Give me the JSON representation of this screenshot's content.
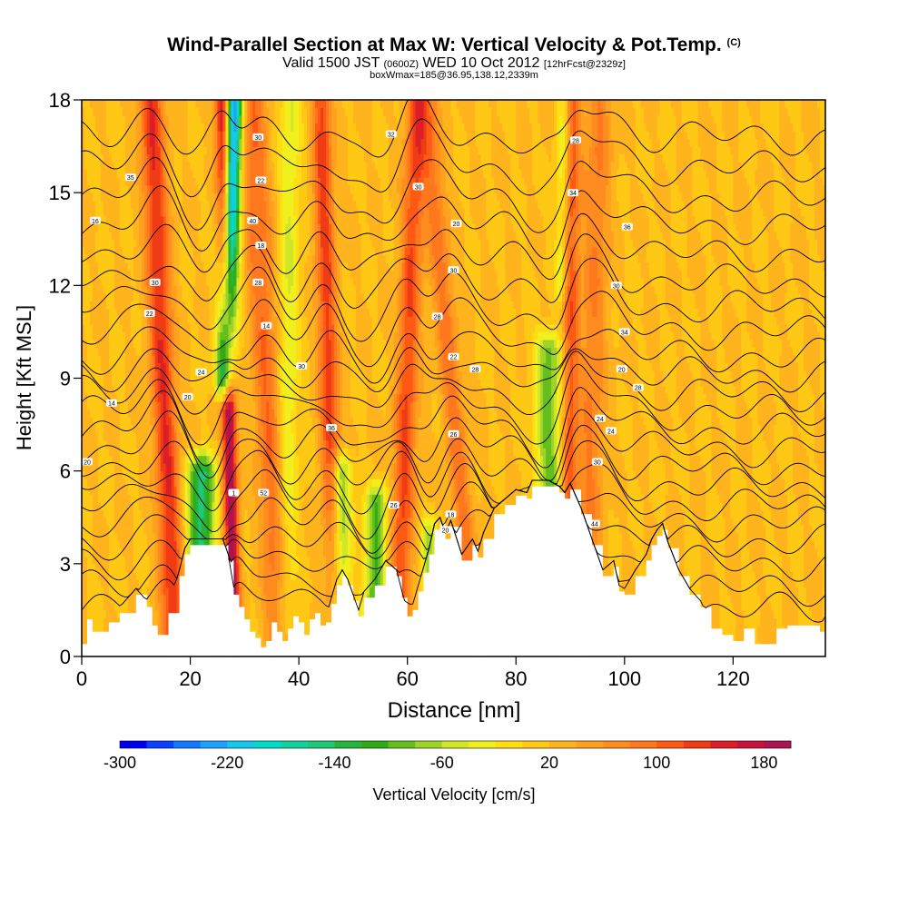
{
  "header": {
    "title": "Wind-Parallel Section at Max W: Vertical Velocity & Pot.Temp.",
    "copyright": "(C)",
    "valid_prefix": "Valid 1500 JST",
    "valid_utc": "(0600Z)",
    "valid_date": "WED 10 Oct 2012",
    "forecast": "[12hrFcst@2329z]",
    "box_info": "boxWmax=185@36.95,138.12,2339m"
  },
  "chart_data": {
    "type": "heatmap",
    "xlabel": "Distance [nm]",
    "ylabel": "Height [Kft MSL]",
    "xlim": [
      0,
      137
    ],
    "ylim": [
      0,
      18
    ],
    "xticks": [
      0,
      20,
      40,
      60,
      80,
      100,
      120
    ],
    "yticks": [
      0,
      3,
      6,
      9,
      12,
      15,
      18
    ],
    "grid": false,
    "colorbar": {
      "label": "Vertical Velocity [cm/s]",
      "min": -300,
      "max": 200,
      "step": 20,
      "tick_values": [
        -300,
        -220,
        -140,
        -60,
        20,
        100,
        180
      ],
      "tick_labels": [
        "-300",
        "-220",
        "-140",
        "-60",
        "20",
        "100",
        "180"
      ],
      "colors": [
        "#0000f0",
        "#0a40ff",
        "#1478ff",
        "#1ea0ff",
        "#14c8f0",
        "#00dcc8",
        "#14d2a0",
        "#1ec878",
        "#28b43c",
        "#32aa14",
        "#64be1e",
        "#a0d228",
        "#d2e628",
        "#f0f01e",
        "#ffdc14",
        "#ffc814",
        "#ffb41e",
        "#ffa01e",
        "#ff8c1e",
        "#ff781e",
        "#ff5a14",
        "#f03c14",
        "#dc1e28",
        "#c8143c",
        "#aa1450",
        "#821e78"
      ]
    },
    "background_velocity": 20,
    "updraft_bands": [
      {
        "x": 15,
        "tilt": -0.25,
        "width": 2.2,
        "value": 120
      },
      {
        "x": 27,
        "tilt": -0.12,
        "width": 1.3,
        "value": 180
      },
      {
        "x": 34,
        "tilt": -0.3,
        "width": 2.5,
        "value": 80
      },
      {
        "x": 45.5,
        "tilt": -0.15,
        "width": 1.8,
        "value": 110
      },
      {
        "x": 60,
        "tilt": 0.2,
        "width": 2.0,
        "value": 100
      },
      {
        "x": 68,
        "tilt": -0.5,
        "width": 2.0,
        "value": 70
      },
      {
        "x": 90,
        "tilt": 0.05,
        "width": 1.5,
        "value": 90
      },
      {
        "x": 94,
        "tilt": 0.15,
        "width": 2.5,
        "value": 60
      }
    ],
    "downdraft_bands": [
      {
        "x": 22,
        "tilt": 0,
        "width": 2.5,
        "value": -170,
        "ymax": 6
      },
      {
        "x": 26.5,
        "tilt": 0.18,
        "width": 1.6,
        "value": -280,
        "ymin": 9
      },
      {
        "x": 38,
        "tilt": 0.05,
        "width": 2.0,
        "value": -60
      },
      {
        "x": 48,
        "tilt": 0.1,
        "width": 2.0,
        "value": -120,
        "ymax": 6
      },
      {
        "x": 55,
        "tilt": 0.15,
        "width": 2.0,
        "value": -120,
        "ymax": 5
      },
      {
        "x": 64,
        "tilt": 0,
        "width": 1.5,
        "value": -80,
        "ymax": 4
      },
      {
        "x": 86,
        "tilt": 0,
        "width": 2.5,
        "value": -110,
        "ymin": 5.5,
        "ymax": 10
      },
      {
        "x": 88,
        "tilt": 0.1,
        "width": 1.2,
        "value": -60,
        "ymin": 12
      }
    ],
    "terrain": {
      "x": [
        0,
        1,
        2,
        5,
        7,
        10,
        12,
        13,
        14,
        15,
        16,
        18,
        19,
        20,
        22,
        24,
        26,
        27,
        28,
        29,
        30,
        31,
        32,
        33,
        34,
        35,
        36,
        37,
        38,
        39,
        40,
        41,
        42,
        43,
        44,
        45,
        46,
        47,
        48,
        49,
        50,
        51,
        52,
        54,
        56,
        58,
        59,
        60,
        61,
        62,
        63,
        64,
        65,
        66,
        67,
        68,
        70,
        72,
        73,
        74,
        76,
        78,
        80,
        82,
        83,
        84,
        86,
        88,
        89,
        90,
        92,
        94,
        96,
        98,
        99,
        100,
        102,
        104,
        105,
        106,
        107,
        108,
        110,
        112,
        114,
        116,
        118,
        120,
        122,
        124,
        126,
        128,
        130,
        132,
        134,
        136,
        137
      ],
      "y": [
        0.4,
        1.2,
        0.8,
        1.1,
        1.4,
        2,
        1.6,
        1,
        0.7,
        0.7,
        1.4,
        2.6,
        3.3,
        3.6,
        3.6,
        3.6,
        3.6,
        3.1,
        2,
        1.6,
        1.2,
        0.8,
        0.6,
        0.3,
        0.5,
        1.1,
        0.8,
        0.5,
        0.9,
        1.3,
        1.1,
        0.7,
        1.2,
        1.4,
        1,
        1.1,
        1.7,
        2.3,
        2.6,
        2.3,
        1.8,
        1.3,
        1.9,
        2.3,
        2.9,
        2.6,
        1.9,
        1.3,
        1.5,
        2.1,
        2.7,
        3.3,
        4.1,
        4.3,
        3.8,
        4.2,
        3.1,
        3.6,
        3.2,
        3.8,
        4.6,
        4.9,
        5.2,
        5.1,
        5.5,
        5.5,
        5.5,
        5.3,
        5.1,
        5.4,
        4.6,
        3.6,
        2.6,
        2.9,
        2.1,
        2,
        2.6,
        3.1,
        3.6,
        3.9,
        4.1,
        3.5,
        2.6,
        2,
        1.6,
        0.9,
        0.7,
        0.5,
        0.9,
        0.4,
        0.4,
        0.9,
        1,
        1,
        1,
        0.8,
        1.1
      ],
      "fill": "#ffffff"
    },
    "theta_contours": {
      "levels": [
        300,
        302,
        304,
        306,
        308,
        310,
        312,
        314,
        316,
        318,
        320,
        322,
        324,
        326,
        328,
        330,
        332,
        334,
        336,
        338,
        340,
        342
      ],
      "base_heights": [
        1.5,
        2.2,
        3.0,
        3.7,
        4.3,
        4.9,
        5.5,
        6.1,
        6.7,
        7.3,
        7.9,
        8.5,
        9.1,
        9.7,
        10.5,
        11.3,
        12.1,
        13.0,
        13.9,
        14.8,
        15.8,
        16.8
      ],
      "color": "#000000"
    },
    "contour_labels": [
      {
        "x": 1,
        "y": 6.3,
        "text": "20"
      },
      {
        "x": 5.5,
        "y": 8.2,
        "text": "14"
      },
      {
        "x": 12.5,
        "y": 11.1,
        "text": "22"
      },
      {
        "x": 13.5,
        "y": 12.1,
        "text": "30"
      },
      {
        "x": 2.5,
        "y": 14.1,
        "text": "16"
      },
      {
        "x": 9,
        "y": 15.5,
        "text": "35"
      },
      {
        "x": 19.5,
        "y": 8.4,
        "text": "20"
      },
      {
        "x": 22,
        "y": 9.2,
        "text": "24"
      },
      {
        "x": 28,
        "y": 5.3,
        "text": "1"
      },
      {
        "x": 33.5,
        "y": 5.3,
        "text": "52"
      },
      {
        "x": 34,
        "y": 10.7,
        "text": "14"
      },
      {
        "x": 32.5,
        "y": 12.1,
        "text": "28"
      },
      {
        "x": 33,
        "y": 13.3,
        "text": "18"
      },
      {
        "x": 31.5,
        "y": 14.1,
        "text": "40"
      },
      {
        "x": 33,
        "y": 15.4,
        "text": "22"
      },
      {
        "x": 32.5,
        "y": 16.8,
        "text": "30"
      },
      {
        "x": 40.5,
        "y": 9.4,
        "text": "30"
      },
      {
        "x": 46,
        "y": 7.4,
        "text": "36"
      },
      {
        "x": 57.5,
        "y": 4.9,
        "text": "26"
      },
      {
        "x": 57,
        "y": 16.9,
        "text": "32"
      },
      {
        "x": 62,
        "y": 15.2,
        "text": "30"
      },
      {
        "x": 65.5,
        "y": 11.0,
        "text": "28"
      },
      {
        "x": 67,
        "y": 4.1,
        "text": "20"
      },
      {
        "x": 68,
        "y": 4.6,
        "text": "18"
      },
      {
        "x": 68.5,
        "y": 7.2,
        "text": "26"
      },
      {
        "x": 68.5,
        "y": 9.7,
        "text": "22"
      },
      {
        "x": 68.5,
        "y": 12.5,
        "text": "30"
      },
      {
        "x": 69,
        "y": 14.0,
        "text": "20"
      },
      {
        "x": 72.5,
        "y": 9.3,
        "text": "28"
      },
      {
        "x": 90.5,
        "y": 15.0,
        "text": "34"
      },
      {
        "x": 91,
        "y": 16.7,
        "text": "28"
      },
      {
        "x": 94.5,
        "y": 4.3,
        "text": "44"
      },
      {
        "x": 95,
        "y": 6.3,
        "text": "30"
      },
      {
        "x": 95.5,
        "y": 7.7,
        "text": "24"
      },
      {
        "x": 97.5,
        "y": 7.3,
        "text": "24"
      },
      {
        "x": 98.5,
        "y": 12.0,
        "text": "30"
      },
      {
        "x": 100,
        "y": 10.5,
        "text": "34"
      },
      {
        "x": 99.5,
        "y": 9.3,
        "text": "20"
      },
      {
        "x": 100.5,
        "y": 13.9,
        "text": "36"
      },
      {
        "x": 102.5,
        "y": 8.7,
        "text": "28"
      }
    ]
  }
}
